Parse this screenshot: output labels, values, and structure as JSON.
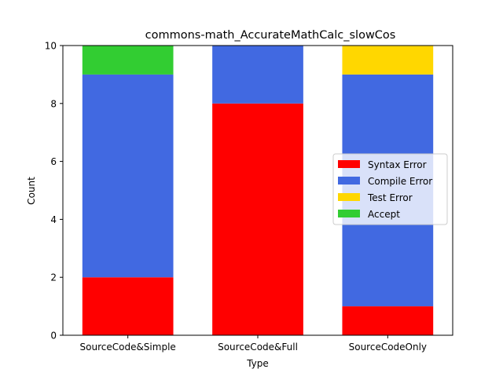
{
  "chart_data": {
    "type": "bar",
    "stacked": true,
    "title": "commons-math_AccurateMathCalc_slowCos",
    "xlabel": "Type",
    "ylabel": "Count",
    "ylim": [
      0,
      10
    ],
    "yticks": [
      0,
      2,
      4,
      6,
      8,
      10
    ],
    "categories": [
      "SourceCode&Simple",
      "SourceCode&Full",
      "SourceCodeOnly"
    ],
    "series": [
      {
        "name": "Syntax Error",
        "color": "#ff0000",
        "values": [
          2,
          8,
          1
        ]
      },
      {
        "name": "Compile Error",
        "color": "#4169e1",
        "values": [
          7,
          2,
          8
        ]
      },
      {
        "name": "Test Error",
        "color": "#ffd700",
        "values": [
          0,
          0,
          1
        ]
      },
      {
        "name": "Accept",
        "color": "#32cd32",
        "values": [
          1,
          0,
          0
        ]
      }
    ],
    "grid": false,
    "legend_position": "center-right"
  }
}
